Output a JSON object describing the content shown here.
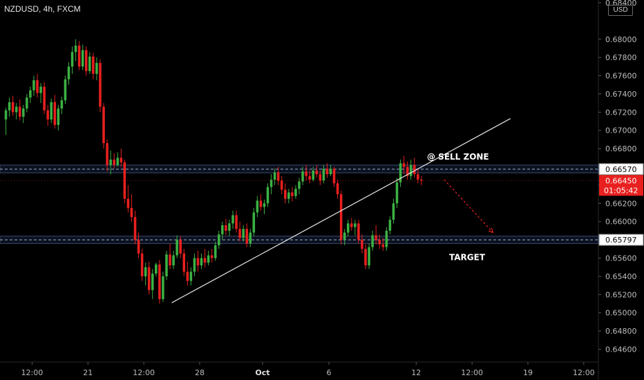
{
  "header": {
    "title": "NZDUSD, 4h, FXCM",
    "currency": "USD"
  },
  "colors": {
    "background": "#000000",
    "up": "#3bb143",
    "down": "#e8201f",
    "zone": "#3a4a6b",
    "trendline": "#e8e8e8",
    "price_tag": "#e8201f"
  },
  "chart_data": {
    "type": "candlestick",
    "symbol": "NZDUSD",
    "timeframe": "4h",
    "ylim": [
      0.6446,
      0.6843
    ],
    "y_ticks": [
      "0.68400",
      "0.68000",
      "0.67800",
      "0.67600",
      "0.67400",
      "0.67200",
      "0.67000",
      "0.66800",
      "0.66600",
      "0.66400",
      "0.66200",
      "0.66000",
      "0.65800",
      "0.65600",
      "0.65400",
      "0.65200",
      "0.65000",
      "0.64800",
      "0.64600"
    ],
    "x_labels": [
      {
        "label": "12:00",
        "bar": 8,
        "bold": false
      },
      {
        "label": "21",
        "bar": 24,
        "bold": false
      },
      {
        "label": "12:00",
        "bar": 40,
        "bold": false
      },
      {
        "label": "28",
        "bar": 56,
        "bold": false
      },
      {
        "label": "Oct",
        "bar": 74,
        "bold": true
      },
      {
        "label": "6",
        "bar": 93,
        "bold": false
      },
      {
        "label": "12",
        "bar": 118,
        "bold": false
      },
      {
        "label": "12:00",
        "bar": 134,
        "bold": false
      },
      {
        "label": "19",
        "bar": 150,
        "bold": false
      },
      {
        "label": "12:00",
        "bar": 166,
        "bold": false
      }
    ],
    "x_range": [
      0,
      169
    ],
    "candles": [
      [
        0.6712,
        0.6725,
        0.6695,
        0.6722
      ],
      [
        0.6722,
        0.6736,
        0.6715,
        0.6731
      ],
      [
        0.6731,
        0.6738,
        0.6716,
        0.672
      ],
      [
        0.672,
        0.673,
        0.6712,
        0.6726
      ],
      [
        0.6726,
        0.6734,
        0.6711,
        0.6715
      ],
      [
        0.6715,
        0.6728,
        0.6708,
        0.6724
      ],
      [
        0.6724,
        0.674,
        0.672,
        0.6736
      ],
      [
        0.6736,
        0.6748,
        0.673,
        0.6744
      ],
      [
        0.6744,
        0.676,
        0.6738,
        0.6755
      ],
      [
        0.6755,
        0.6762,
        0.6736,
        0.6741
      ],
      [
        0.6741,
        0.6752,
        0.673,
        0.6748
      ],
      [
        0.6748,
        0.6753,
        0.6718,
        0.6722
      ],
      [
        0.6722,
        0.6728,
        0.6705,
        0.6712
      ],
      [
        0.6712,
        0.6735,
        0.6708,
        0.6731
      ],
      [
        0.6731,
        0.6739,
        0.6702,
        0.6706
      ],
      [
        0.6706,
        0.6728,
        0.67,
        0.6724
      ],
      [
        0.6724,
        0.6737,
        0.6718,
        0.6733
      ],
      [
        0.6733,
        0.676,
        0.6729,
        0.6756
      ],
      [
        0.6756,
        0.6775,
        0.675,
        0.677
      ],
      [
        0.677,
        0.6792,
        0.6762,
        0.6786
      ],
      [
        0.6786,
        0.68,
        0.6776,
        0.6793
      ],
      [
        0.6793,
        0.6798,
        0.6766,
        0.677
      ],
      [
        0.677,
        0.6794,
        0.6766,
        0.6788
      ],
      [
        0.6788,
        0.6792,
        0.676,
        0.6765
      ],
      [
        0.6765,
        0.6786,
        0.6762,
        0.6781
      ],
      [
        0.6781,
        0.6785,
        0.6756,
        0.6762
      ],
      [
        0.6762,
        0.678,
        0.6755,
        0.6774
      ],
      [
        0.6774,
        0.6778,
        0.672,
        0.6726
      ],
      [
        0.6726,
        0.673,
        0.668,
        0.6686
      ],
      [
        0.6686,
        0.669,
        0.6655,
        0.6662
      ],
      [
        0.6662,
        0.6678,
        0.6652,
        0.6668
      ],
      [
        0.6668,
        0.6675,
        0.6658,
        0.6662
      ],
      [
        0.6662,
        0.6676,
        0.666,
        0.667
      ],
      [
        0.667,
        0.668,
        0.666,
        0.6665
      ],
      [
        0.6665,
        0.6668,
        0.662,
        0.6625
      ],
      [
        0.6625,
        0.664,
        0.661,
        0.6615
      ],
      [
        0.6615,
        0.663,
        0.66,
        0.6605
      ],
      [
        0.6605,
        0.6612,
        0.6575,
        0.658
      ],
      [
        0.658,
        0.6588,
        0.656,
        0.6565
      ],
      [
        0.6565,
        0.657,
        0.6535,
        0.654
      ],
      [
        0.654,
        0.6555,
        0.653,
        0.655
      ],
      [
        0.655,
        0.6556,
        0.652,
        0.6525
      ],
      [
        0.6525,
        0.6548,
        0.6515,
        0.6543
      ],
      [
        0.6543,
        0.6555,
        0.654,
        0.6553
      ],
      [
        0.6553,
        0.6558,
        0.651,
        0.6515
      ],
      [
        0.6515,
        0.6545,
        0.6512,
        0.654
      ],
      [
        0.654,
        0.6568,
        0.6536,
        0.6564
      ],
      [
        0.6564,
        0.6576,
        0.6548,
        0.6552
      ],
      [
        0.6552,
        0.6568,
        0.6548,
        0.6563
      ],
      [
        0.6563,
        0.6585,
        0.656,
        0.658
      ],
      [
        0.658,
        0.6584,
        0.656,
        0.6565
      ],
      [
        0.6565,
        0.657,
        0.654,
        0.6545
      ],
      [
        0.6545,
        0.6556,
        0.653,
        0.6535
      ],
      [
        0.6535,
        0.655,
        0.653,
        0.6545
      ],
      [
        0.6545,
        0.6565,
        0.654,
        0.656
      ],
      [
        0.656,
        0.6568,
        0.6545,
        0.6552
      ],
      [
        0.6552,
        0.6565,
        0.6548,
        0.656
      ],
      [
        0.656,
        0.657,
        0.655,
        0.6555
      ],
      [
        0.6555,
        0.6568,
        0.6552,
        0.6563
      ],
      [
        0.6563,
        0.657,
        0.6555,
        0.656
      ],
      [
        0.656,
        0.6578,
        0.6557,
        0.6574
      ],
      [
        0.6574,
        0.659,
        0.657,
        0.6586
      ],
      [
        0.6586,
        0.66,
        0.658,
        0.6596
      ],
      [
        0.6596,
        0.6603,
        0.6585,
        0.659
      ],
      [
        0.659,
        0.6602,
        0.6584,
        0.6598
      ],
      [
        0.6598,
        0.6612,
        0.6592,
        0.6607
      ],
      [
        0.6607,
        0.6612,
        0.6588,
        0.6592
      ],
      [
        0.6592,
        0.66,
        0.6578,
        0.6582
      ],
      [
        0.6582,
        0.6596,
        0.6578,
        0.6592
      ],
      [
        0.6592,
        0.6598,
        0.6572,
        0.6576
      ],
      [
        0.6576,
        0.6592,
        0.6572,
        0.6588
      ],
      [
        0.6588,
        0.6615,
        0.6584,
        0.661
      ],
      [
        0.661,
        0.6628,
        0.6605,
        0.6623
      ],
      [
        0.6623,
        0.663,
        0.6612,
        0.6616
      ],
      [
        0.6616,
        0.6624,
        0.6608,
        0.662
      ],
      [
        0.662,
        0.6642,
        0.6616,
        0.6638
      ],
      [
        0.6638,
        0.6652,
        0.663,
        0.6646
      ],
      [
        0.6646,
        0.6658,
        0.664,
        0.6654
      ],
      [
        0.6654,
        0.666,
        0.664,
        0.6645
      ],
      [
        0.6645,
        0.665,
        0.663,
        0.6635
      ],
      [
        0.6635,
        0.6642,
        0.662,
        0.6625
      ],
      [
        0.6625,
        0.6636,
        0.662,
        0.6632
      ],
      [
        0.6632,
        0.6638,
        0.6622,
        0.6628
      ],
      [
        0.6628,
        0.664,
        0.6625,
        0.6636
      ],
      [
        0.6636,
        0.6648,
        0.663,
        0.6644
      ],
      [
        0.6644,
        0.666,
        0.664,
        0.6655
      ],
      [
        0.6655,
        0.6662,
        0.6645,
        0.665
      ],
      [
        0.665,
        0.6656,
        0.6642,
        0.6646
      ],
      [
        0.6646,
        0.666,
        0.6644,
        0.6656
      ],
      [
        0.6656,
        0.6662,
        0.6648,
        0.6652
      ],
      [
        0.6652,
        0.6656,
        0.664,
        0.6645
      ],
      [
        0.6645,
        0.6662,
        0.6642,
        0.6658
      ],
      [
        0.6658,
        0.6664,
        0.6648,
        0.6652
      ],
      [
        0.6652,
        0.6662,
        0.665,
        0.6658
      ],
      [
        0.6658,
        0.666,
        0.6638,
        0.6642
      ],
      [
        0.6642,
        0.6646,
        0.6625,
        0.663
      ],
      [
        0.663,
        0.6634,
        0.6575,
        0.658
      ],
      [
        0.658,
        0.6592,
        0.6574,
        0.6588
      ],
      [
        0.6588,
        0.6602,
        0.6584,
        0.6598
      ],
      [
        0.6598,
        0.6604,
        0.659,
        0.6594
      ],
      [
        0.6594,
        0.6602,
        0.6585,
        0.6598
      ],
      [
        0.6598,
        0.6602,
        0.6576,
        0.658
      ],
      [
        0.658,
        0.6586,
        0.6565,
        0.657
      ],
      [
        0.657,
        0.6575,
        0.6548,
        0.6552
      ],
      [
        0.6552,
        0.6576,
        0.6548,
        0.6572
      ],
      [
        0.6572,
        0.659,
        0.6568,
        0.6585
      ],
      [
        0.6585,
        0.6596,
        0.6575,
        0.658
      ],
      [
        0.658,
        0.6586,
        0.657,
        0.6575
      ],
      [
        0.6575,
        0.6582,
        0.6568,
        0.6572
      ],
      [
        0.6572,
        0.6594,
        0.6568,
        0.659
      ],
      [
        0.659,
        0.6606,
        0.6586,
        0.6602
      ],
      [
        0.6602,
        0.6625,
        0.6598,
        0.662
      ],
      [
        0.662,
        0.6648,
        0.6615,
        0.6643
      ],
      [
        0.6643,
        0.6668,
        0.6638,
        0.6664
      ],
      [
        0.6664,
        0.6672,
        0.6652,
        0.666
      ],
      [
        0.666,
        0.6666,
        0.6646,
        0.665
      ],
      [
        0.665,
        0.6668,
        0.6646,
        0.6662
      ],
      [
        0.6662,
        0.667,
        0.6648,
        0.6652
      ],
      [
        0.6652,
        0.6658,
        0.6642,
        0.6646
      ],
      [
        0.6646,
        0.665,
        0.664,
        0.6645
      ]
    ],
    "zones": [
      {
        "name": "sell-zone",
        "from": 0.66535,
        "to": 0.6662,
        "dash_price": 0.66575,
        "tag": "0.66570"
      },
      {
        "name": "target-zone",
        "from": 0.6576,
        "to": 0.6584,
        "dash_price": 0.658,
        "tag": "0.65797"
      }
    ],
    "trendline": {
      "from": {
        "bar": 48,
        "price": 0.6511
      },
      "to": {
        "bar": 145,
        "price": 0.6713
      }
    },
    "projection": {
      "from": {
        "bar": 126,
        "price": 0.6646
      },
      "to": {
        "bar": 140,
        "price": 0.6588
      }
    },
    "annotations": {
      "sell_zone": "@ SELL ZONE",
      "target": "TARGET"
    },
    "last_price": {
      "price": 0.6645,
      "label": "0.66450",
      "countdown": "01:05:42"
    }
  }
}
